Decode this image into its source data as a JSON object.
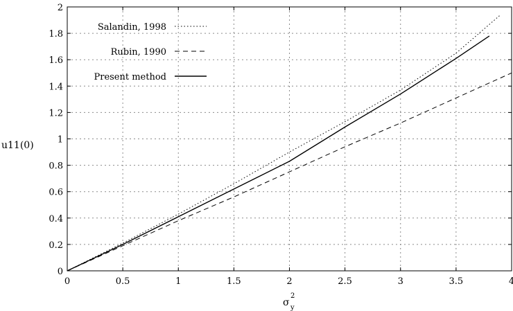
{
  "chart_data": {
    "type": "line",
    "title": "",
    "xlabel": "σ",
    "xlabel_sup": "2",
    "xlabel_sub": "y",
    "ylabel": "u11(0)",
    "xlim": [
      0,
      4
    ],
    "ylim": [
      0,
      2
    ],
    "xticks": [
      {
        "value": 0,
        "label": "0"
      },
      {
        "value": 0.5,
        "label": "0.5"
      },
      {
        "value": 1,
        "label": "1"
      },
      {
        "value": 1.5,
        "label": "1.5"
      },
      {
        "value": 2,
        "label": "2"
      },
      {
        "value": 2.5,
        "label": "2.5"
      },
      {
        "value": 3,
        "label": "3"
      },
      {
        "value": 3.5,
        "label": "3.5"
      },
      {
        "value": 4,
        "label": "4"
      }
    ],
    "yticks": [
      {
        "value": 0,
        "label": "0"
      },
      {
        "value": 0.2,
        "label": "0.2"
      },
      {
        "value": 0.4,
        "label": "0.4"
      },
      {
        "value": 0.6,
        "label": "0.6"
      },
      {
        "value": 0.8,
        "label": "0.8"
      },
      {
        "value": 1.0,
        "label": "1"
      },
      {
        "value": 1.2,
        "label": "1.2"
      },
      {
        "value": 1.4,
        "label": "1.4"
      },
      {
        "value": 1.6,
        "label": "1.6"
      },
      {
        "value": 1.8,
        "label": "1.8"
      },
      {
        "value": 2.0,
        "label": "2"
      }
    ],
    "grid": true,
    "legend": "top-left",
    "series": [
      {
        "name": "Salandin, 1998",
        "style": "dotted",
        "color": "#000000",
        "x": [
          0,
          0.5,
          1.0,
          1.5,
          2.0,
          2.5,
          3.0,
          3.5,
          3.9
        ],
        "y": [
          0,
          0.21,
          0.43,
          0.66,
          0.9,
          1.13,
          1.37,
          1.65,
          1.94
        ]
      },
      {
        "name": "Rubin, 1990",
        "style": "dashed",
        "color": "#000000",
        "x": [
          0,
          0.5,
          1.0,
          1.5,
          2.0,
          2.5,
          3.0,
          3.5,
          4.0
        ],
        "y": [
          0,
          0.19,
          0.38,
          0.56,
          0.75,
          0.94,
          1.12,
          1.31,
          1.5
        ]
      },
      {
        "name": "Present method",
        "style": "solid",
        "color": "#000000",
        "x": [
          0,
          0.5,
          1.0,
          1.5,
          2.0,
          2.5,
          3.0,
          3.5,
          3.8
        ],
        "y": [
          0,
          0.2,
          0.41,
          0.62,
          0.83,
          1.09,
          1.34,
          1.61,
          1.78
        ]
      }
    ]
  }
}
